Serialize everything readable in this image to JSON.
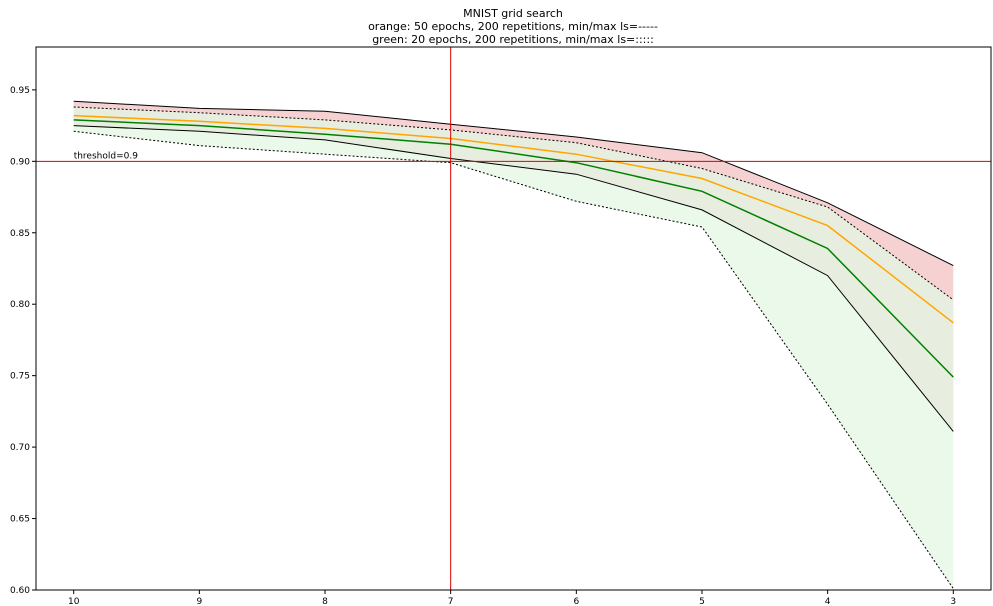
{
  "chart_data": {
    "type": "line",
    "title": "MNIST grid search",
    "subtitle_lines": [
      "orange: 50 epochs, 200 repetitions, min/max ls=-----",
      "green: 20 epochs, 200 repetitions, min/max ls=:::::"
    ],
    "xlabel": "",
    "ylabel": "",
    "x_reversed": true,
    "xlim": [
      10.3,
      2.7
    ],
    "ylim": [
      0.6,
      0.98
    ],
    "x_ticks": [
      10,
      9,
      8,
      7,
      6,
      5,
      4,
      3
    ],
    "y_ticks": [
      0.6,
      0.65,
      0.7,
      0.75,
      0.8,
      0.85,
      0.9,
      0.95
    ],
    "y_tick_labels": [
      "0.60",
      "0.65",
      "0.70",
      "0.75",
      "0.80",
      "0.85",
      "0.90",
      "0.95"
    ],
    "grid": false,
    "x": [
      10,
      9,
      8,
      7,
      6,
      5,
      4,
      3
    ],
    "series": [
      {
        "color": "#ffa500",
        "band_color": "#f4cccc",
        "min_style": "solid",
        "max_style": "solid",
        "mean": [
          0.932,
          0.928,
          0.923,
          0.916,
          0.905,
          0.888,
          0.855,
          0.787
        ],
        "min": [
          0.925,
          0.921,
          0.915,
          0.902,
          0.891,
          0.866,
          0.82,
          0.711
        ],
        "max": [
          0.942,
          0.937,
          0.935,
          0.926,
          0.917,
          0.906,
          0.871,
          0.827
        ]
      },
      {
        "color": "#008000",
        "band_color": "#e3f7e3",
        "min_style": "dotted",
        "max_style": "dotted",
        "mean": [
          0.929,
          0.925,
          0.919,
          0.912,
          0.899,
          0.879,
          0.839,
          0.749
        ],
        "min": [
          0.921,
          0.911,
          0.905,
          0.899,
          0.872,
          0.854,
          0.73,
          0.601
        ],
        "max": [
          0.938,
          0.934,
          0.929,
          0.922,
          0.913,
          0.895,
          0.868,
          0.803
        ]
      }
    ],
    "threshold": {
      "value": 0.9,
      "label": "threshold=0.9",
      "color": "#dd0000"
    },
    "vline": {
      "x": 7,
      "color": "#dd0000"
    }
  }
}
